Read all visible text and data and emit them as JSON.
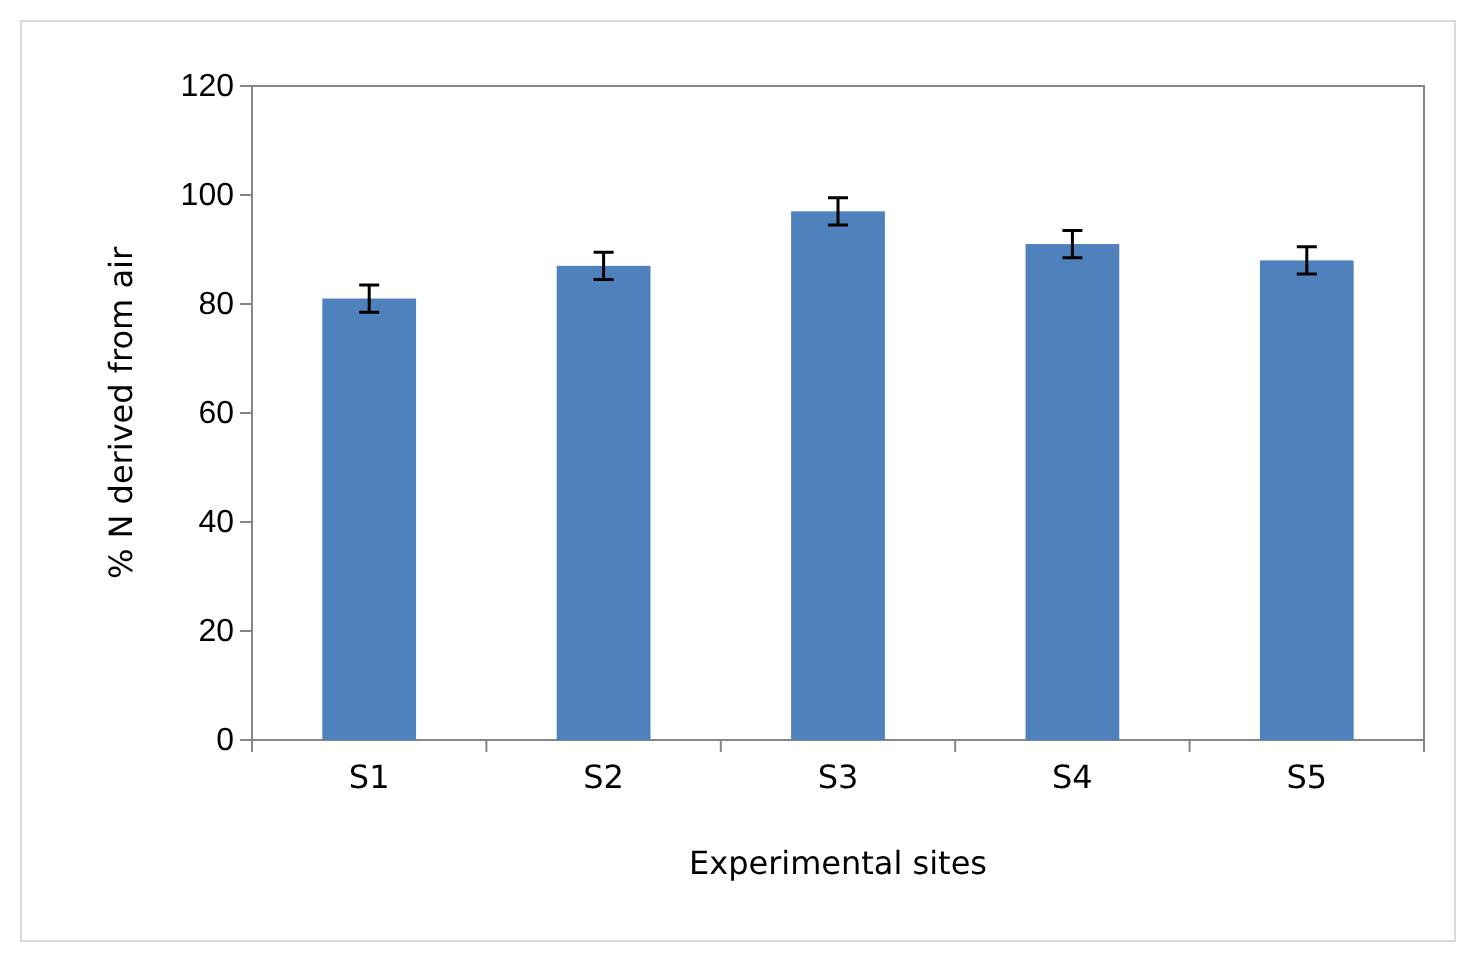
{
  "chart_data": {
    "type": "bar",
    "xlabel": "Experimental sites",
    "ylabel": "% N derived from air",
    "categories": [
      "S1",
      "S2",
      "S3",
      "S4",
      "S5"
    ],
    "values": [
      81,
      87,
      97,
      91,
      88
    ],
    "errors": [
      2.5,
      2.5,
      2.5,
      2.5,
      2.5
    ],
    "color": "#4f81bd",
    "ylim": [
      0,
      120
    ],
    "yticks": [
      0,
      20,
      40,
      60,
      80,
      100,
      120
    ],
    "grid": false
  }
}
